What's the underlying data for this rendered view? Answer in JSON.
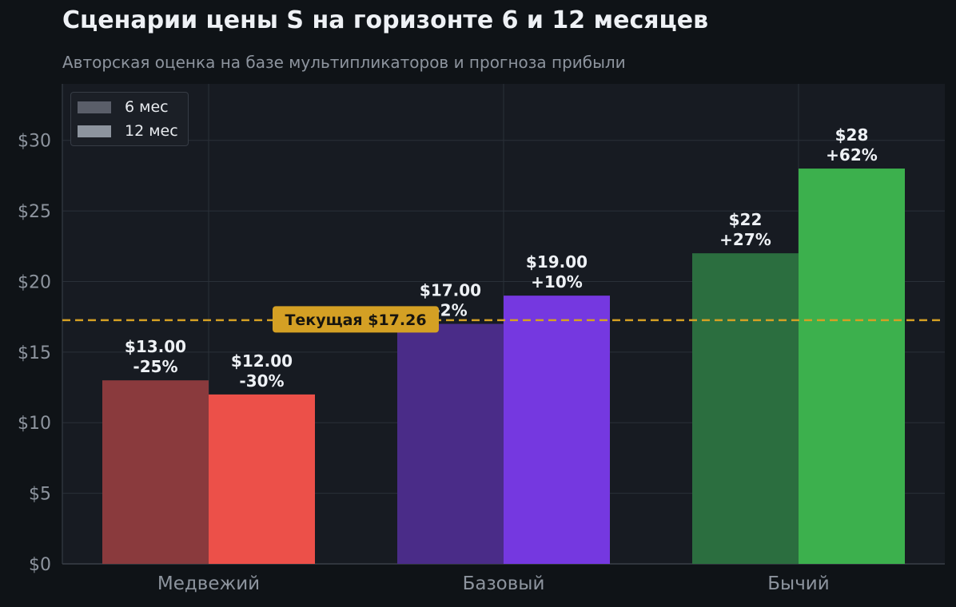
{
  "title": "Сценарии цены S на горизонте 6 и 12 месяцев",
  "subtitle": "Авторская оценка на базе мультипликаторов и прогноза прибыли",
  "colors": {
    "background": "#0f1317",
    "plot_background": "#171b22",
    "grid": "#2a3038",
    "axis_text": "#8d949e",
    "label_text": "#eef1f5",
    "current_line": "#d4a024",
    "current_label_bg": "#d4a024",
    "current_label_text": "#17150f",
    "legend_6": "#5a5e69",
    "legend_12": "#8d949e"
  },
  "legend": [
    {
      "label": "6 мес",
      "color": "#5a5e69"
    },
    {
      "label": "12 мес",
      "color": "#8d949e"
    }
  ],
  "chart_data": {
    "type": "bar",
    "categories": [
      "Медвежий",
      "Базовый",
      "Бычий"
    ],
    "series": [
      {
        "name": "6 мес",
        "values": [
          13.0,
          17.0,
          22.0
        ],
        "colors": [
          "#8a3a3d",
          "#4a2c88",
          "#2b6e3f"
        ],
        "labels": [
          "$13.00\n-25%",
          "$17.00\n-2%",
          "$22\n+27%"
        ]
      },
      {
        "name": "12 мес",
        "values": [
          12.0,
          19.0,
          28.0
        ],
        "colors": [
          "#ec5049",
          "#7538e0",
          "#3cb04d"
        ],
        "labels": [
          "$12.00\n-30%",
          "$19.00\n+10%",
          "$28\n+62%"
        ]
      }
    ],
    "ylim": [
      0,
      34
    ],
    "yticks": [
      0,
      5,
      10,
      15,
      20,
      25,
      30
    ],
    "ytick_labels": [
      "$0",
      "$5",
      "$10",
      "$15",
      "$20",
      "$25",
      "$30"
    ],
    "xlabel": "",
    "ylabel": "",
    "grid": true,
    "legend_position": "top-left",
    "reference_line": {
      "value": 17.26,
      "label": "Текущая $17.26",
      "style": "dashed"
    }
  }
}
